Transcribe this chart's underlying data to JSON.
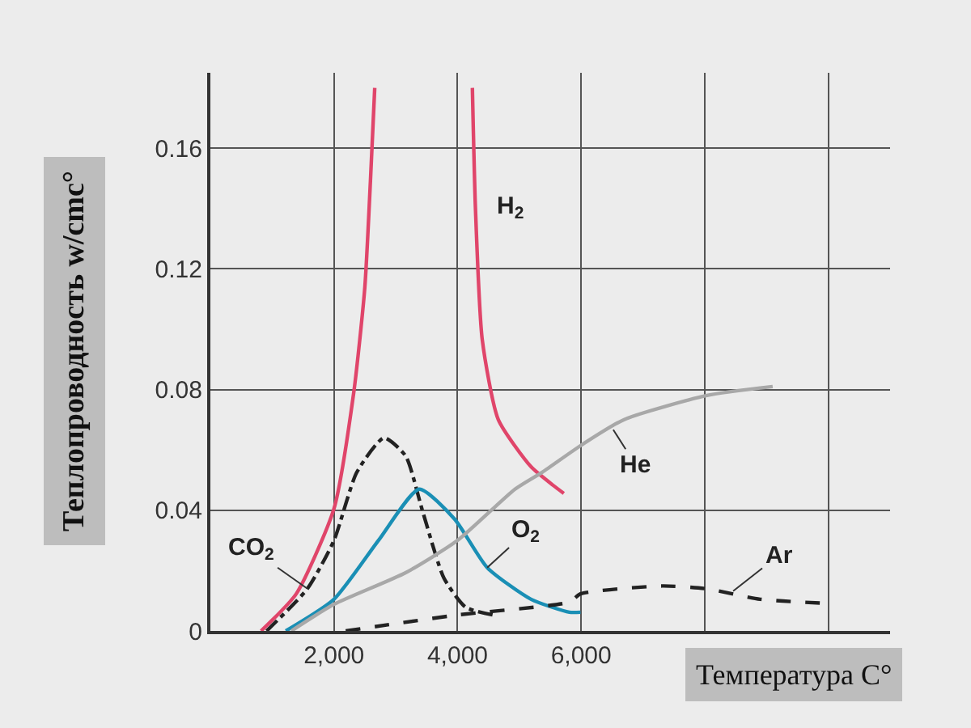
{
  "chart_data": {
    "type": "line",
    "xlabel": "Температура C°",
    "ylabel": "Теплопроводность w/cmc°",
    "xlim": [
      0,
      11000
    ],
    "ylim": [
      0,
      0.185
    ],
    "xticks": [
      {
        "value": 2000,
        "label": "2,000"
      },
      {
        "value": 4000,
        "label": "4,000"
      },
      {
        "value": 6000,
        "label": "6,000"
      },
      {
        "value": 8000,
        "label": null
      },
      {
        "value": 10000,
        "label": null
      }
    ],
    "yticks": [
      0,
      0.04,
      0.08,
      0.12,
      0.16
    ],
    "grid": true,
    "series": [
      {
        "color": "#e0456a",
        "line_style": "solid",
        "x": [
          820,
          1390,
          2000,
          2320,
          2500,
          2590,
          2660,
          null,
          4240,
          4290,
          4400,
          4660,
          5190,
          5545,
          5720
        ],
        "values": [
          0,
          0.0123,
          0.0405,
          0.079,
          0.114,
          0.149,
          0.18,
          null,
          0.18,
          0.14,
          0.0965,
          0.07,
          0.0544,
          0.0483,
          0.0456
        ]
      },
      {
        "color": "#222222",
        "line_style": "dashdot",
        "x": [
          910,
          1570,
          2000,
          2370,
          2810,
          3160,
          3430,
          3780,
          4130,
          4570
        ],
        "values": [
          0,
          0.014,
          0.03,
          0.0526,
          0.064,
          0.058,
          0.04,
          0.0175,
          0.0079,
          0.0053
        ]
      },
      {
        "color": "#1a8fb5",
        "line_style": "solid",
        "x": [
          1220,
          2000,
          2720,
          3380,
          3955,
          4480,
          5190,
          5810,
          5990
        ],
        "values": [
          0,
          0.0105,
          0.03,
          0.047,
          0.037,
          0.021,
          0.0105,
          0.0062,
          0.0062
        ]
      },
      {
        "color": "#a8a8a8",
        "line_style": "solid",
        "x": [
          1310,
          2000,
          3160,
          4000,
          4930,
          5370,
          5990,
          6690,
          8020,
          9100
        ],
        "values": [
          0,
          0.0088,
          0.0193,
          0.03,
          0.047,
          0.0526,
          0.0614,
          0.07,
          0.078,
          0.081
        ]
      },
      {
        "color": "#222222",
        "line_style": "dashed",
        "x": [
          2190,
          4000,
          5810,
          5990,
          7310,
          8020,
          8900,
          10000
        ],
        "values": [
          0,
          0.0053,
          0.0096,
          0.0123,
          0.0149,
          0.014,
          0.0105,
          0.0091
        ]
      }
    ],
    "annotations": [
      {
        "text": "H$_{2}$",
        "x": 4290,
        "y": 0.14
      },
      {
        "text": "CO$_{2}$",
        "x": 1570,
        "y": 0.014
      },
      {
        "text": "O$_{2}$",
        "x": 4480,
        "y": 0.021
      },
      {
        "text": "He",
        "x": 6520,
        "y": 0.0667
      },
      {
        "text": "Ar",
        "x": 8460,
        "y": 0.0132
      }
    ]
  }
}
